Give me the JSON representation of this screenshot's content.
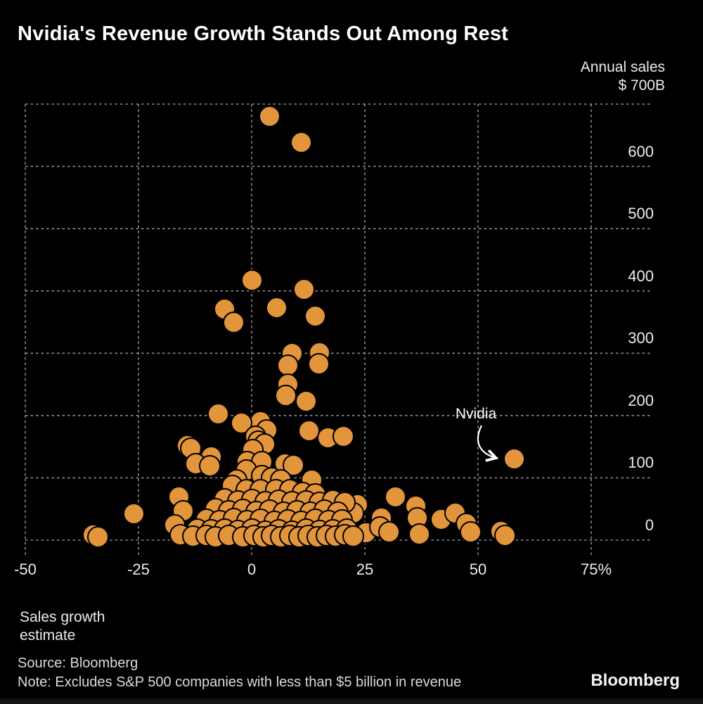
{
  "title": "Nvidia's Revenue Growth Stands Out Among Rest",
  "y_axis": {
    "header_line1": "Annual sales",
    "header_line2": "$ 700B",
    "ticks": [
      {
        "label": "600",
        "value": 600
      },
      {
        "label": "500",
        "value": 500
      },
      {
        "label": "400",
        "value": 400
      },
      {
        "label": "300",
        "value": 300
      },
      {
        "label": "200",
        "value": 200
      },
      {
        "label": "100",
        "value": 100
      },
      {
        "label": "0",
        "value": 0
      }
    ]
  },
  "x_axis": {
    "label_line1": "Sales growth",
    "label_line2": "estimate",
    "ticks": [
      {
        "label": "-50",
        "value": -50
      },
      {
        "label": "-25",
        "value": -25
      },
      {
        "label": "0",
        "value": 0
      },
      {
        "label": "25",
        "value": 25
      },
      {
        "label": "50",
        "value": 50
      },
      {
        "label": "75%",
        "value": 75
      }
    ]
  },
  "annotation": {
    "label": "Nvidia"
  },
  "footer": {
    "source": "Source: Bloomberg",
    "note": "Note: Excludes S&P 500 companies with less than $5 billion in revenue",
    "logo": "Bloomberg"
  },
  "colors": {
    "background": "#000000",
    "dot": "#E2953A",
    "dot_outline": "#000000",
    "grid": "#8C8C8C",
    "text": "#EDEDED",
    "arrow": "#FFFFFF"
  },
  "chart_data": {
    "type": "scatter",
    "title": "Nvidia's Revenue Growth Stands Out Among Rest",
    "xlabel": "Sales growth estimate (%)",
    "ylabel": "Annual sales ($B)",
    "xlim": [
      -50,
      88
    ],
    "ylim": [
      0,
      700
    ],
    "grid": true,
    "x_gridline_values": [
      -50,
      -25,
      0,
      25,
      50,
      75
    ],
    "y_gridline_values": [
      0,
      100,
      200,
      300,
      400,
      500,
      600,
      700
    ],
    "nvidia_point": [
      58,
      130
    ],
    "points": [
      [
        4,
        680
      ],
      [
        11,
        638
      ],
      [
        0,
        417
      ],
      [
        11.5,
        402
      ],
      [
        -6,
        371
      ],
      [
        5.5,
        373
      ],
      [
        14,
        360
      ],
      [
        -4,
        350
      ],
      [
        9,
        300
      ],
      [
        15,
        301
      ],
      [
        8,
        281
      ],
      [
        14.8,
        283
      ],
      [
        8,
        250
      ],
      [
        7.5,
        232
      ],
      [
        12,
        223
      ],
      [
        -7.3,
        203
      ],
      [
        1.9,
        190
      ],
      [
        -2.3,
        188
      ],
      [
        3.4,
        177
      ],
      [
        12.7,
        176
      ],
      [
        0.8,
        166
      ],
      [
        16.9,
        164
      ],
      [
        20.2,
        166
      ],
      [
        1.4,
        159
      ],
      [
        2.9,
        154
      ],
      [
        0.3,
        145
      ],
      [
        -14.2,
        152
      ],
      [
        -13.5,
        147
      ],
      [
        -9,
        134
      ],
      [
        -1,
        126
      ],
      [
        2.2,
        126
      ],
      [
        7.3,
        123
      ],
      [
        -12.4,
        123
      ],
      [
        -9.3,
        119
      ],
      [
        9.2,
        120
      ],
      [
        -1.2,
        112
      ],
      [
        13.2,
        97
      ],
      [
        -35,
        8
      ],
      [
        -34,
        5
      ],
      [
        -26,
        42
      ],
      [
        -16,
        69
      ],
      [
        -15.2,
        47
      ],
      [
        -17,
        24
      ],
      [
        -15.7,
        8
      ],
      [
        -7.9,
        44
      ],
      [
        -7,
        24
      ],
      [
        -6.2,
        10
      ],
      [
        -1.6,
        53
      ],
      [
        23.4,
        57
      ],
      [
        22.4,
        44
      ],
      [
        28.7,
        36
      ],
      [
        25.2,
        12
      ],
      [
        28.3,
        21
      ],
      [
        30.3,
        13
      ],
      [
        31.8,
        69
      ],
      [
        36.3,
        55
      ],
      [
        36.6,
        36
      ],
      [
        37,
        10
      ],
      [
        41.9,
        33
      ],
      [
        44.9,
        44
      ],
      [
        47.4,
        27
      ],
      [
        48.4,
        13
      ],
      [
        55,
        14
      ],
      [
        56,
        7
      ],
      [
        -3.3,
        97
      ],
      [
        2.3,
        103
      ],
      [
        4.5,
        100
      ],
      [
        6.5,
        97
      ],
      [
        -4.3,
        87
      ],
      [
        -1.2,
        81
      ],
      [
        1.9,
        81
      ],
      [
        5.3,
        81
      ],
      [
        8.5,
        81
      ],
      [
        11.2,
        76
      ],
      [
        14,
        74
      ],
      [
        -6,
        66
      ],
      [
        -3,
        63
      ],
      [
        0,
        65
      ],
      [
        3,
        62
      ],
      [
        6,
        64
      ],
      [
        9,
        61
      ],
      [
        12,
        63
      ],
      [
        15,
        60
      ],
      [
        18,
        64
      ],
      [
        20.5,
        60
      ],
      [
        -8,
        50
      ],
      [
        -5,
        47
      ],
      [
        -2,
        49
      ],
      [
        1,
        46
      ],
      [
        4,
        48
      ],
      [
        7,
        45
      ],
      [
        10,
        47
      ],
      [
        13,
        45
      ],
      [
        16,
        48
      ],
      [
        19,
        45
      ],
      [
        -10,
        33
      ],
      [
        -7,
        31
      ],
      [
        -4,
        34
      ],
      [
        -1,
        31
      ],
      [
        2,
        33
      ],
      [
        5,
        30
      ],
      [
        8,
        32
      ],
      [
        11,
        30
      ],
      [
        14,
        33
      ],
      [
        17,
        31
      ],
      [
        20,
        32
      ],
      [
        -12,
        18
      ],
      [
        -9,
        16
      ],
      [
        -6,
        18
      ],
      [
        -3,
        15
      ],
      [
        0,
        17
      ],
      [
        3,
        14
      ],
      [
        6,
        16
      ],
      [
        9,
        14
      ],
      [
        12,
        17
      ],
      [
        15,
        15
      ],
      [
        18,
        16
      ],
      [
        21,
        17
      ],
      [
        -13,
        6
      ],
      [
        -10,
        7
      ],
      [
        -8,
        5
      ],
      [
        -5,
        7
      ],
      [
        -2,
        5
      ],
      [
        0.5,
        7
      ],
      [
        2.5,
        5
      ],
      [
        4.5,
        7
      ],
      [
        6.5,
        5
      ],
      [
        8.5,
        7
      ],
      [
        10.5,
        5
      ],
      [
        12.5,
        7
      ],
      [
        14.5,
        5
      ],
      [
        16.5,
        7
      ],
      [
        18.5,
        6
      ],
      [
        20.5,
        8
      ],
      [
        22.5,
        6
      ]
    ]
  }
}
